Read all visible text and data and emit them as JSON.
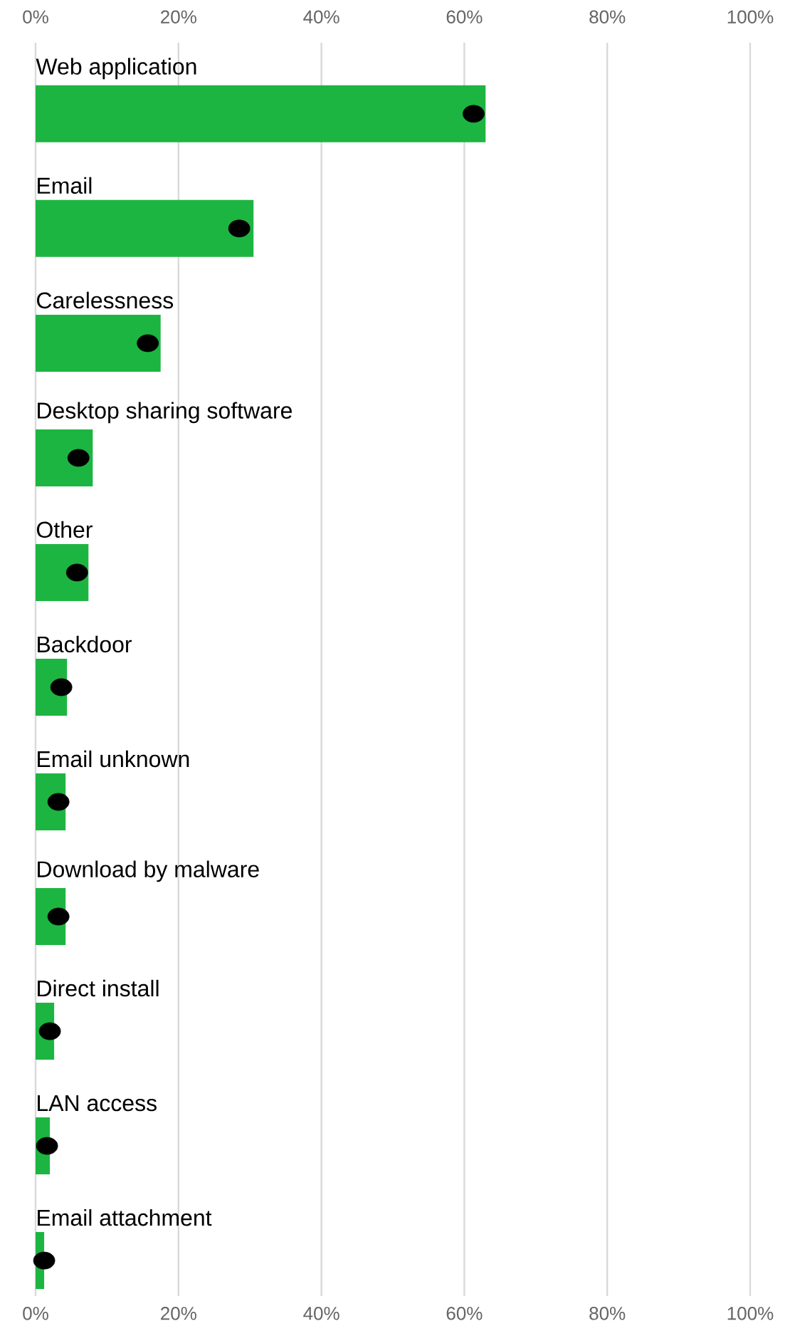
{
  "chart_data": {
    "type": "bar",
    "orientation": "horizontal",
    "categories": [
      "Web application",
      "Email",
      "Carelessness",
      "Desktop sharing software",
      "Other",
      "Backdoor",
      "Email unknown",
      "Download by malware",
      "Direct install",
      "LAN access",
      "Email attachment"
    ],
    "series": [
      {
        "type": "bar",
        "color": "#1db541",
        "values": [
          63,
          30.5,
          17.5,
          8,
          7.4,
          4.4,
          4.2,
          4.2,
          2.6,
          2,
          1.2
        ]
      },
      {
        "type": "scatter",
        "color": "#000000",
        "marker": "circle",
        "values": [
          61.3,
          28.5,
          15.7,
          6,
          5.8,
          3.6,
          3.2,
          3.2,
          2,
          1.6,
          1.2
        ]
      }
    ],
    "xlim": [
      0,
      100
    ],
    "xticks": [
      {
        "value": 0,
        "label": "0%"
      },
      {
        "value": 20,
        "label": "20%"
      },
      {
        "value": 40,
        "label": "40%"
      },
      {
        "value": 60,
        "label": "60%"
      },
      {
        "value": 80,
        "label": "80%"
      },
      {
        "value": 100,
        "label": "100%"
      }
    ],
    "x2lim": [
      0,
      100
    ],
    "x2ticks": [
      {
        "value": 0,
        "label": "0%"
      },
      {
        "value": 20,
        "label": "20%"
      },
      {
        "value": 40,
        "label": "40%"
      },
      {
        "value": 60,
        "label": "60%"
      },
      {
        "value": 80,
        "label": "80%"
      },
      {
        "value": 100,
        "label": "100%"
      }
    ],
    "grid": "x"
  }
}
